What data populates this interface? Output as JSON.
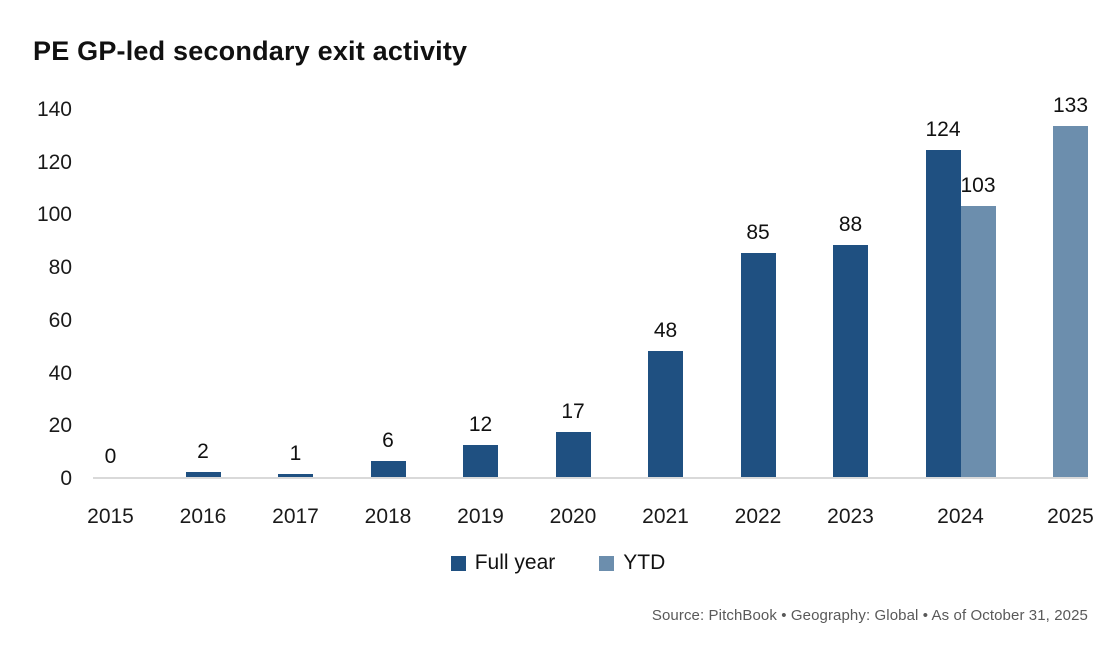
{
  "title": "PE GP-led secondary exit activity",
  "chart_data": {
    "type": "bar",
    "title": "PE GP-led secondary exit activity",
    "categories": [
      "2015",
      "2016",
      "2017",
      "2018",
      "2019",
      "2020",
      "2021",
      "2022",
      "2023",
      "2024",
      "2025"
    ],
    "series": [
      {
        "name": "Full year",
        "color": "#1F5081",
        "values": [
          0,
          2,
          1,
          6,
          12,
          17,
          48,
          85,
          88,
          124,
          null
        ]
      },
      {
        "name": "YTD",
        "color": "#6C8EAD",
        "values": [
          null,
          null,
          null,
          null,
          null,
          null,
          null,
          null,
          null,
          103,
          133
        ]
      }
    ],
    "xlabel": "",
    "ylabel": "",
    "ylim": [
      0,
      140
    ],
    "yticks": [
      0,
      20,
      40,
      60,
      80,
      100,
      120,
      140
    ],
    "grid": false,
    "data_labels": true,
    "legend_position": "bottom",
    "axis_line_color": "#D9D9D9"
  },
  "legend": {
    "items": [
      {
        "label": "Full year",
        "color": "#1F5081"
      },
      {
        "label": "YTD",
        "color": "#6C8EAD"
      }
    ]
  },
  "footer": {
    "source": "Source: PitchBook  •  Geography: Global  •  As of October 31, 2025"
  }
}
